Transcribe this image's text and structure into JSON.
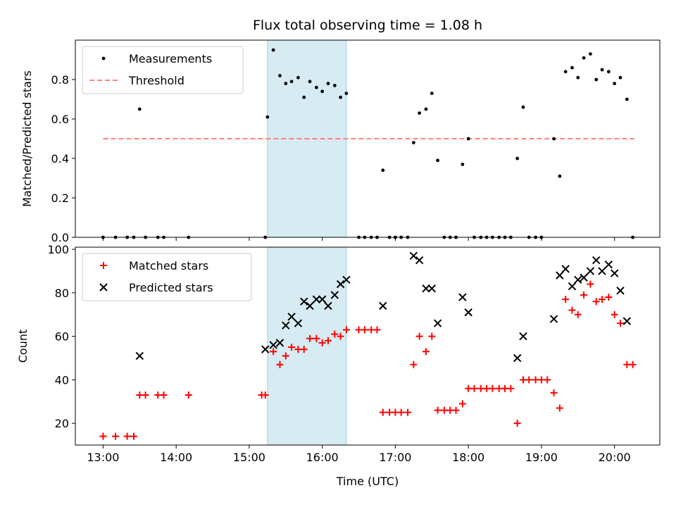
{
  "title": "Flux total observing time = 1.08 h",
  "chart_data": [
    {
      "type": "scatter",
      "title": "Flux total observing time = 1.08 h",
      "xlabel": "",
      "ylabel": "Matched/Predicted stars",
      "x_unit": "hours UTC",
      "xlim": [
        12.62,
        20.62
      ],
      "ylim": [
        0.0,
        1.0
      ],
      "x_ticks": [
        13,
        14,
        15,
        16,
        17,
        18,
        19,
        20
      ],
      "y_ticks": [
        0.0,
        0.2,
        0.4,
        0.6,
        0.8
      ],
      "y_tick_labels": [
        "0.0",
        "0.2",
        "0.4",
        "0.6",
        "0.8"
      ],
      "shaded_span": [
        15.25,
        16.33
      ],
      "legend_position": "top-left",
      "legend": [
        {
          "label": "Measurements",
          "marker": "dot",
          "color": "#000000"
        },
        {
          "label": "Threshold",
          "marker": "dashed-line",
          "color": "#ff7f7f"
        }
      ],
      "threshold": {
        "value": 0.5,
        "x_range": [
          13.0,
          20.27
        ]
      },
      "series": [
        {
          "name": "Measurements",
          "color": "#000000",
          "x": [
            13.0,
            13.17,
            13.33,
            13.42,
            13.5,
            13.58,
            13.75,
            13.83,
            14.17,
            15.22,
            15.25,
            15.33,
            15.42,
            15.5,
            15.58,
            15.67,
            15.75,
            15.83,
            15.92,
            16.0,
            16.08,
            16.17,
            16.25,
            16.33,
            16.5,
            16.58,
            16.67,
            16.75,
            16.83,
            16.92,
            17.0,
            17.08,
            17.17,
            17.25,
            17.33,
            17.42,
            17.5,
            17.58,
            17.67,
            17.75,
            17.83,
            17.92,
            18.0,
            18.08,
            18.17,
            18.25,
            18.33,
            18.42,
            18.5,
            18.58,
            18.67,
            18.75,
            18.83,
            18.92,
            19.0,
            19.17,
            19.25,
            19.33,
            19.42,
            19.5,
            19.58,
            19.67,
            19.75,
            19.83,
            19.92,
            20.0,
            20.08,
            20.17,
            20.25
          ],
          "y": [
            0.0,
            0.0,
            0.0,
            0.0,
            0.65,
            0.0,
            0.0,
            0.0,
            0.0,
            0.0,
            0.61,
            0.95,
            0.82,
            0.78,
            0.79,
            0.81,
            0.71,
            0.79,
            0.76,
            0.74,
            0.78,
            0.77,
            0.71,
            0.73,
            0.0,
            0.0,
            0.0,
            0.0,
            0.34,
            0.0,
            0.0,
            0.0,
            0.0,
            0.48,
            0.63,
            0.65,
            0.73,
            0.39,
            0.0,
            0.0,
            0.0,
            0.37,
            0.5,
            0.0,
            0.0,
            0.0,
            0.0,
            0.0,
            0.0,
            0.0,
            0.4,
            0.66,
            0.0,
            0.0,
            0.0,
            0.5,
            0.31,
            0.84,
            0.86,
            0.81,
            0.91,
            0.93,
            0.8,
            0.85,
            0.84,
            0.78,
            0.81,
            0.7,
            0.0
          ]
        }
      ]
    },
    {
      "type": "scatter",
      "xlabel": "Time (UTC)",
      "ylabel": "Count",
      "x_unit": "hours UTC",
      "xlim": [
        12.62,
        20.62
      ],
      "ylim": [
        10,
        101
      ],
      "x_ticks": [
        13,
        14,
        15,
        16,
        17,
        18,
        19,
        20
      ],
      "x_tick_labels": [
        "13:00",
        "14:00",
        "15:00",
        "16:00",
        "17:00",
        "18:00",
        "19:00",
        "20:00"
      ],
      "y_ticks": [
        20,
        40,
        60,
        80,
        100
      ],
      "y_tick_labels": [
        "20",
        "40",
        "60",
        "80",
        "100"
      ],
      "shaded_span": [
        15.25,
        16.33
      ],
      "legend_position": "top-left",
      "legend": [
        {
          "label": "Matched stars",
          "marker": "plus",
          "color": "#ff0000"
        },
        {
          "label": "Predicted stars",
          "marker": "x",
          "color": "#000000"
        }
      ],
      "series": [
        {
          "name": "Matched stars",
          "color": "#ff0000",
          "marker": "plus",
          "x": [
            13.0,
            13.17,
            13.33,
            13.42,
            13.5,
            13.58,
            13.75,
            13.83,
            14.17,
            15.17,
            15.22,
            15.33,
            15.42,
            15.5,
            15.58,
            15.67,
            15.75,
            15.83,
            15.92,
            16.0,
            16.08,
            16.17,
            16.25,
            16.33,
            16.5,
            16.58,
            16.67,
            16.75,
            16.83,
            16.92,
            17.0,
            17.08,
            17.17,
            17.25,
            17.33,
            17.42,
            17.5,
            17.58,
            17.67,
            17.75,
            17.83,
            17.92,
            18.0,
            18.08,
            18.17,
            18.25,
            18.33,
            18.42,
            18.5,
            18.58,
            18.67,
            18.75,
            18.83,
            18.92,
            19.0,
            19.08,
            19.17,
            19.25,
            19.33,
            19.42,
            19.5,
            19.58,
            19.67,
            19.75,
            19.83,
            19.92,
            20.0,
            20.08,
            20.17,
            20.25
          ],
          "y": [
            14,
            14,
            14,
            14,
            33,
            33,
            33,
            33,
            33,
            33,
            33,
            53,
            47,
            51,
            55,
            54,
            54,
            59,
            59,
            57,
            58,
            61,
            60,
            63,
            63,
            63,
            63,
            63,
            25,
            25,
            25,
            25,
            25,
            47,
            60,
            53,
            60,
            26,
            26,
            26,
            26,
            29,
            36,
            36,
            36,
            36,
            36,
            36,
            36,
            36,
            20,
            40,
            40,
            40,
            40,
            40,
            34,
            27,
            77,
            72,
            70,
            79,
            84,
            76,
            77,
            78,
            70,
            66,
            47,
            47
          ]
        },
        {
          "name": "Predicted stars",
          "color": "#000000",
          "marker": "x",
          "x": [
            13.5,
            15.22,
            15.33,
            15.42,
            15.5,
            15.58,
            15.67,
            15.75,
            15.83,
            15.92,
            16.0,
            16.08,
            16.17,
            16.25,
            16.33,
            16.83,
            17.25,
            17.33,
            17.42,
            17.5,
            17.58,
            17.92,
            18.0,
            18.67,
            18.75,
            19.17,
            19.25,
            19.33,
            19.42,
            19.5,
            19.58,
            19.67,
            19.75,
            19.83,
            19.92,
            20.0,
            20.08,
            20.17
          ],
          "y": [
            51,
            54,
            56,
            57,
            65,
            69,
            66,
            76,
            74,
            77,
            77,
            74,
            79,
            84,
            86,
            74,
            97,
            95,
            82,
            82,
            66,
            78,
            71,
            50,
            60,
            68,
            88,
            91,
            83,
            86,
            87,
            90,
            95,
            90,
            93,
            89,
            81,
            67
          ]
        }
      ]
    }
  ]
}
